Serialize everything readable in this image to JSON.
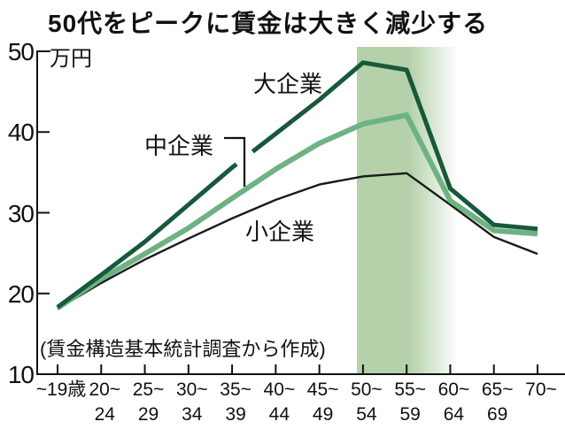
{
  "title": "50代をピークに賃金は大きく減少する",
  "y_axis": {
    "unit": "万円",
    "ticks": [
      50,
      40,
      30,
      20,
      10
    ]
  },
  "x_axis": {
    "categories": [
      {
        "l1": "~19歳",
        "l2": ""
      },
      {
        "l1": "20~",
        "l2": "24"
      },
      {
        "l1": "25~",
        "l2": "29"
      },
      {
        "l1": "30~",
        "l2": "34"
      },
      {
        "l1": "35~",
        "l2": "39"
      },
      {
        "l1": "40~",
        "l2": "44"
      },
      {
        "l1": "45~",
        "l2": "49"
      },
      {
        "l1": "50~",
        "l2": "54"
      },
      {
        "l1": "55~",
        "l2": "59"
      },
      {
        "l1": "60~",
        "l2": "64"
      },
      {
        "l1": "65~",
        "l2": "69"
      },
      {
        "l1": "70~",
        "l2": ""
      }
    ]
  },
  "series_labels": {
    "large": "大企業",
    "medium": "中企業",
    "small": "小企業"
  },
  "source": "(賃金構造基本統計調査から作成)",
  "colors": {
    "large": "#17593a",
    "medium": "#6eb282",
    "small": "#1a1a1a",
    "band": "#b4d1aa",
    "axis": "#111111"
  },
  "chart_data": {
    "type": "line",
    "title": "50代をピークに賃金は大きく減少する",
    "ylabel": "万円",
    "ylim": [
      10,
      50
    ],
    "grid": false,
    "categories": [
      "~19歳",
      "20~24",
      "25~29",
      "30~34",
      "35~39",
      "40~44",
      "45~49",
      "50~54",
      "55~59",
      "60~64",
      "65~69",
      "70~"
    ],
    "series": [
      {
        "name": "大企業",
        "color": "#17593a",
        "values": [
          18.3,
          22.3,
          26.4,
          31.0,
          35.6,
          39.8,
          44.0,
          48.6,
          47.7,
          33.0,
          28.5,
          28.0
        ]
      },
      {
        "name": "中企業",
        "color": "#6eb282",
        "values": [
          18.2,
          21.8,
          24.9,
          28.1,
          31.8,
          35.4,
          38.6,
          41.0,
          42.1,
          31.5,
          27.8,
          27.4
        ]
      },
      {
        "name": "小企業",
        "color": "#1a1a1a",
        "values": [
          18.1,
          21.3,
          24.2,
          26.8,
          29.3,
          31.6,
          33.5,
          34.5,
          34.9,
          31.0,
          27.0,
          24.9
        ]
      }
    ],
    "highlight_band": {
      "from_category": "50~54",
      "to_category": "60~64",
      "style": "solid fading right",
      "color": "#b4d1aa"
    },
    "source": "(賃金構造基本統計調査から作成)"
  }
}
